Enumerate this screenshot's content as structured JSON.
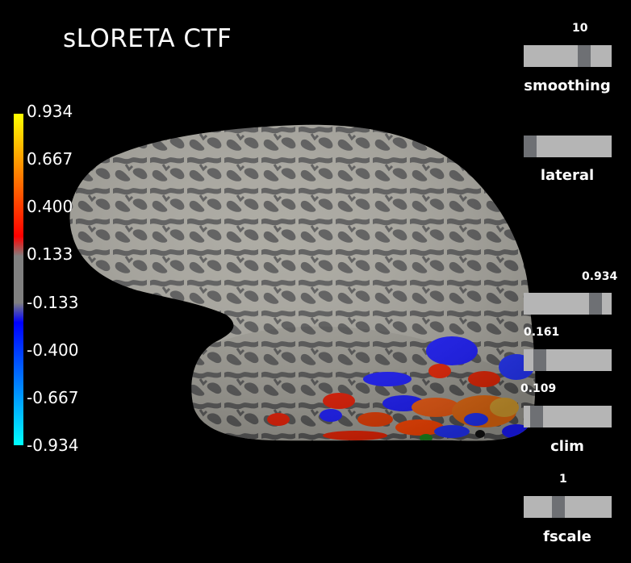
{
  "window": {
    "title": "sLORETA CTF"
  },
  "colorbar": {
    "labels": [
      "0.934",
      "0.667",
      "0.400",
      "0.133",
      "-0.133",
      "-0.400",
      "-0.667",
      "-0.934"
    ],
    "min": -0.934,
    "max": 0.934,
    "colors": {
      "top": "#ffff00",
      "orange": "#ff8800",
      "red": "#ff0000",
      "gray": "#808080",
      "blue": "#0000ff",
      "cyan": "#00ffff"
    }
  },
  "sliders": {
    "smoothing": {
      "label": "smoothing",
      "value": "10",
      "fraction": 0.72
    },
    "lateral": {
      "label": "lateral",
      "fraction": 0.0
    },
    "clim_max": {
      "value": "0.934",
      "fraction": 0.87
    },
    "clim_mid": {
      "value": "0.161",
      "fraction": 0.13
    },
    "clim_min": {
      "value": "0.109",
      "fraction": 0.09
    },
    "clim": {
      "label": "clim"
    },
    "fscale": {
      "label": "fscale",
      "value": "1",
      "fraction": 0.38
    }
  }
}
